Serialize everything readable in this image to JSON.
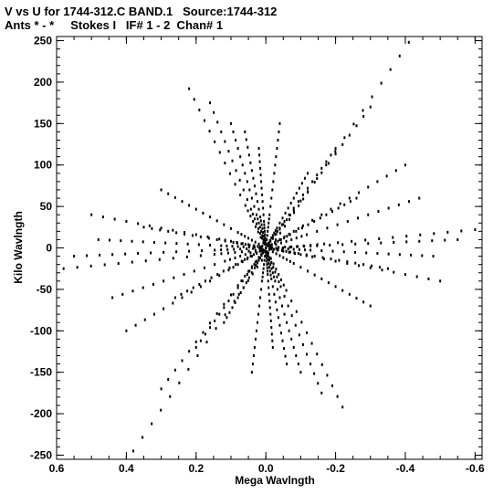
{
  "chart_data": {
    "type": "scatter",
    "title": "V vs U for 1744-312.C BAND.1   Source:1744-312",
    "subtitle": "Ants * - *     Stokes I   IF# 1 - 2  Chan# 1",
    "xlabel": "Mega Wavlngth",
    "ylabel": "Kilo Wavlngth",
    "xlim": [
      0.6,
      -0.62
    ],
    "ylim": [
      -255,
      255
    ],
    "xticks": [
      0.6,
      0.4,
      0.2,
      0.0,
      -0.2,
      -0.4,
      -0.6
    ],
    "xtick_labels": [
      "0.6",
      "0.4",
      "0.2",
      "0.0",
      "-0.2",
      "-0.4",
      "-0.6"
    ],
    "yticks": [
      250,
      200,
      150,
      100,
      50,
      0,
      -50,
      -100,
      -150,
      -200,
      -250
    ],
    "ytick_labels": [
      "250",
      "200",
      "150",
      "100",
      "50",
      "0",
      "-50",
      "-100",
      "-150",
      "-200",
      "-250"
    ],
    "grid": false,
    "marker_color": "#000000",
    "tracks": [
      {
        "from": [
          0.38,
          -245
        ],
        "to": [
          -0.41,
          248
        ]
      },
      {
        "from": [
          0.58,
          -25
        ],
        "to": [
          -0.6,
          22
        ]
      },
      {
        "from": [
          0.22,
          192
        ],
        "to": [
          -0.22,
          -192
        ]
      },
      {
        "from": [
          0.1,
          150
        ],
        "to": [
          -0.1,
          -150
        ]
      },
      {
        "from": [
          0.04,
          -150
        ],
        "to": [
          -0.04,
          150
        ]
      },
      {
        "from": [
          0.3,
          70
        ],
        "to": [
          -0.3,
          -70
        ]
      },
      {
        "from": [
          0.44,
          -60
        ],
        "to": [
          -0.44,
          60
        ]
      },
      {
        "from": [
          0.2,
          -120
        ],
        "to": [
          -0.2,
          120
        ]
      },
      {
        "from": [
          0.5,
          40
        ],
        "to": [
          -0.5,
          -40
        ]
      },
      {
        "from": [
          0.3,
          -170
        ],
        "to": [
          -0.3,
          170
        ]
      },
      {
        "from": [
          0.16,
          175
        ],
        "to": [
          -0.16,
          -175
        ]
      },
      {
        "from": [
          0.55,
          -10
        ],
        "to": [
          -0.55,
          10
        ]
      },
      {
        "from": [
          0.06,
          140
        ],
        "to": [
          -0.06,
          -140
        ]
      },
      {
        "from": [
          0.4,
          -100
        ],
        "to": [
          -0.4,
          100
        ]
      },
      {
        "from": [
          0.48,
          10
        ],
        "to": [
          -0.48,
          -10
        ]
      },
      {
        "from": [
          0.26,
          -60
        ],
        "to": [
          -0.26,
          60
        ]
      },
      {
        "from": [
          0.12,
          -90
        ],
        "to": [
          -0.12,
          90
        ]
      },
      {
        "from": [
          0.35,
          25
        ],
        "to": [
          -0.35,
          -25
        ]
      },
      {
        "from": [
          0.02,
          120
        ],
        "to": [
          -0.02,
          -120
        ]
      }
    ]
  }
}
